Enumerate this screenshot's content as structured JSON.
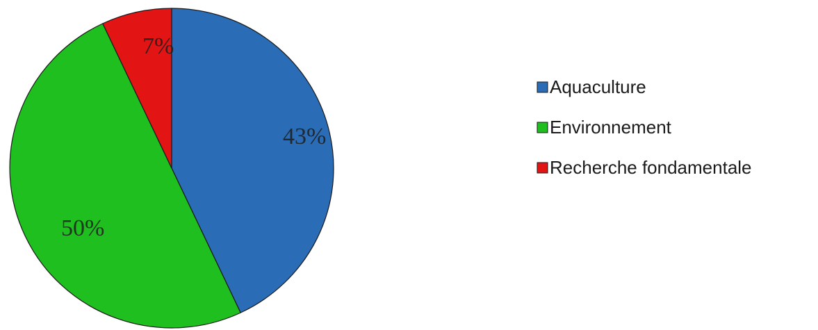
{
  "chart_data": {
    "type": "pie",
    "title": "",
    "slices": [
      {
        "label": "Aquaculture",
        "value": 43,
        "display": "43%",
        "color": "#2a6cb5"
      },
      {
        "label": "Environnement",
        "value": 50,
        "display": "50%",
        "color": "#1fbf1f"
      },
      {
        "label": "Recherche fondamentale",
        "value": 7,
        "display": "7%",
        "color": "#e31414"
      }
    ],
    "start_angle_deg": 0,
    "direction": "clockwise",
    "legend_placement": "right"
  }
}
